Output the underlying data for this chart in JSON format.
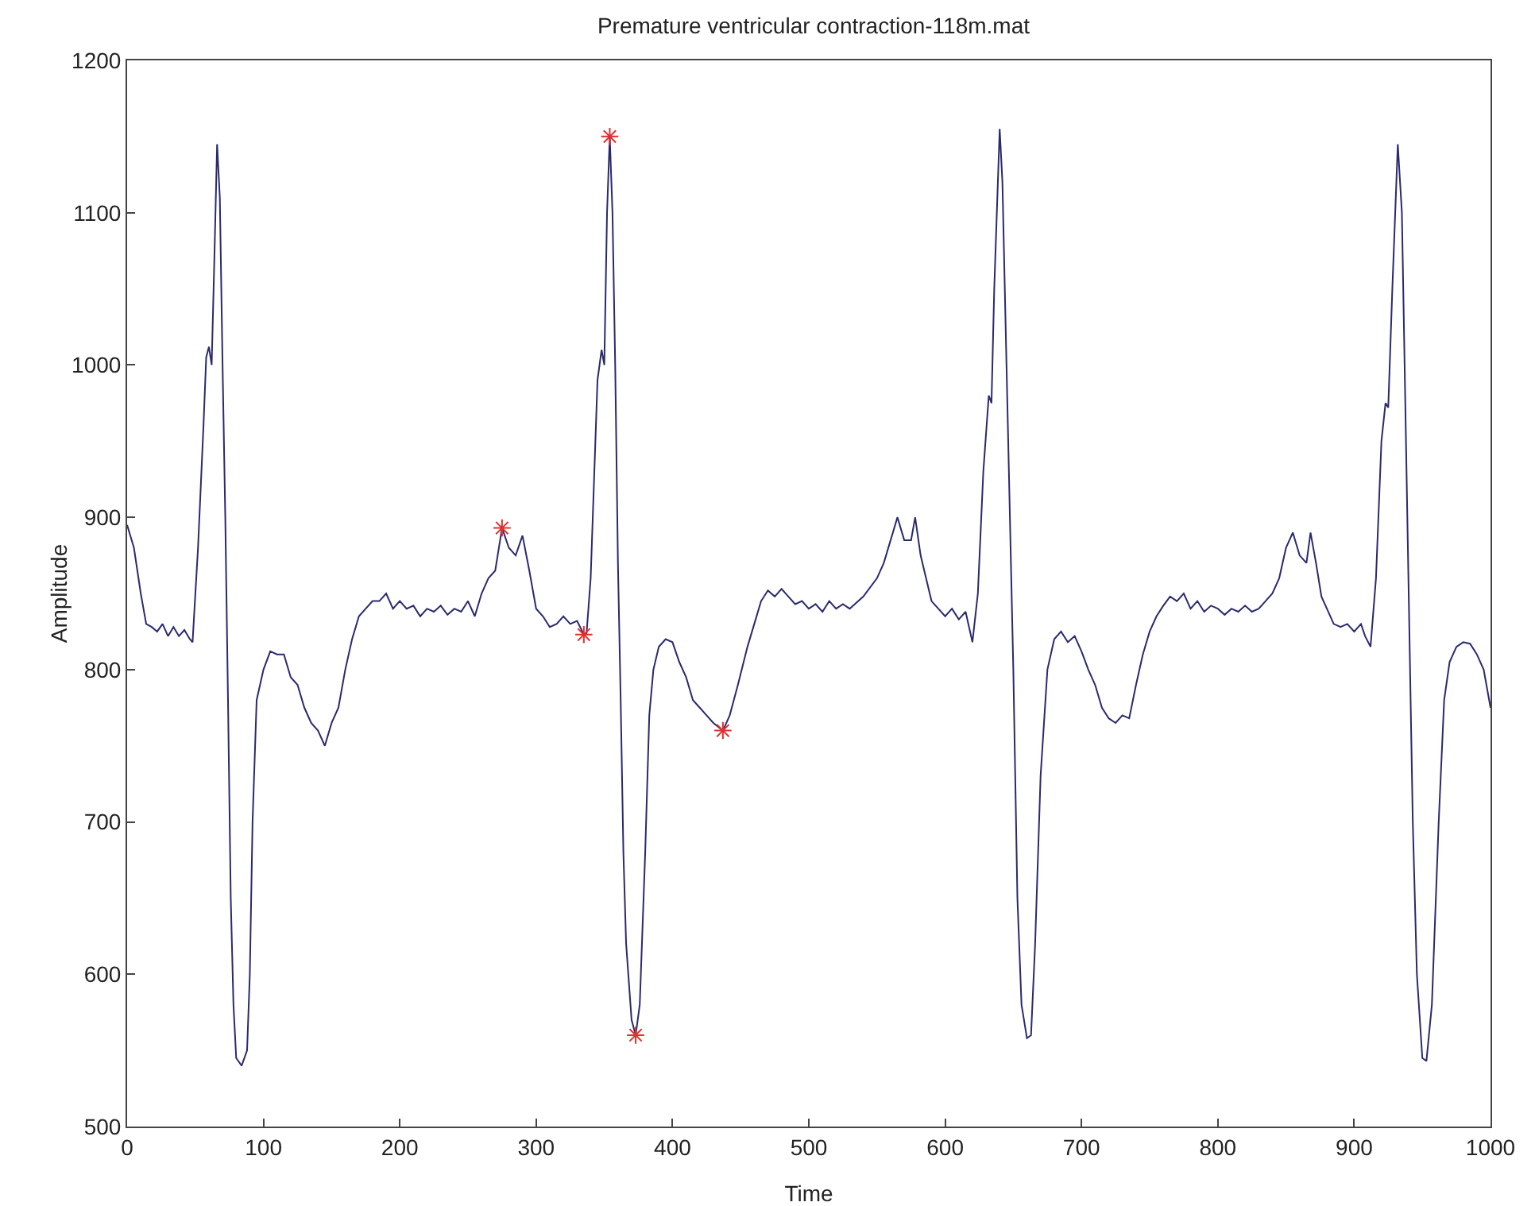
{
  "chart_data": {
    "type": "line",
    "title": "Premature ventricular contraction-118m.mat",
    "xlabel": "Time",
    "ylabel": "Amplitude",
    "xlim": [
      0,
      1000
    ],
    "xticks": [
      0,
      100,
      200,
      300,
      400,
      500,
      600,
      700,
      800,
      900,
      1000
    ],
    "ylim": [
      500,
      1200
    ],
    "yticks": [
      500,
      600,
      700,
      800,
      900,
      1000,
      1100,
      1200
    ],
    "series": [
      {
        "color": "#2a2a6e",
        "marker": "none",
        "line_style": "solid",
        "x": [
          0,
          5,
          10,
          14,
          18,
          22,
          26,
          30,
          34,
          38,
          42,
          46,
          48,
          52,
          56,
          58,
          60,
          62,
          64,
          66,
          68,
          70,
          72,
          74,
          76,
          78,
          80,
          84,
          88,
          90,
          92,
          95,
          100,
          105,
          110,
          115,
          120,
          125,
          130,
          135,
          140,
          145,
          150,
          155,
          160,
          165,
          170,
          175,
          180,
          185,
          190,
          195,
          200,
          205,
          210,
          215,
          220,
          225,
          230,
          235,
          240,
          245,
          250,
          255,
          260,
          265,
          270,
          275,
          280,
          285,
          290,
          295,
          300,
          305,
          310,
          315,
          320,
          325,
          330,
          335,
          337,
          340,
          345,
          348,
          350,
          352,
          354,
          356,
          358,
          360,
          362,
          364,
          366,
          370,
          373,
          376,
          380,
          383,
          386,
          390,
          395,
          400,
          405,
          410,
          415,
          420,
          425,
          430,
          437,
          442,
          448,
          455,
          460,
          465,
          470,
          475,
          480,
          485,
          490,
          495,
          500,
          505,
          510,
          515,
          520,
          525,
          530,
          540,
          550,
          555,
          560,
          565,
          570,
          575,
          578,
          582,
          590,
          595,
          600,
          605,
          610,
          615,
          620,
          624,
          628,
          632,
          634,
          636,
          640,
          642,
          645,
          650,
          653,
          656,
          660,
          663,
          666,
          670,
          675,
          680,
          685,
          690,
          695,
          700,
          705,
          710,
          715,
          720,
          725,
          730,
          735,
          740,
          745,
          750,
          755,
          760,
          765,
          770,
          775,
          780,
          785,
          790,
          795,
          800,
          805,
          810,
          815,
          820,
          825,
          830,
          835,
          840,
          845,
          850,
          855,
          860,
          865,
          868,
          872,
          876,
          880,
          885,
          890,
          895,
          900,
          905,
          908,
          912,
          916,
          920,
          923,
          925,
          928,
          932,
          935,
          937,
          940,
          943,
          946,
          950,
          953,
          957,
          962,
          966,
          970,
          975,
          980,
          985,
          990,
          995,
          1000
        ],
        "values": [
          895,
          880,
          850,
          830,
          828,
          825,
          830,
          822,
          828,
          822,
          826,
          820,
          818,
          880,
          960,
          1005,
          1012,
          1000,
          1070,
          1145,
          1110,
          1000,
          900,
          780,
          650,
          580,
          545,
          540,
          550,
          600,
          700,
          780,
          800,
          812,
          810,
          810,
          795,
          790,
          775,
          765,
          760,
          750,
          765,
          775,
          800,
          820,
          835,
          840,
          845,
          845,
          850,
          840,
          845,
          840,
          842,
          835,
          840,
          838,
          842,
          836,
          840,
          838,
          845,
          835,
          850,
          860,
          865,
          893,
          880,
          875,
          888,
          865,
          840,
          835,
          828,
          830,
          835,
          830,
          832,
          823,
          824,
          860,
          990,
          1010,
          1000,
          1100,
          1150,
          1100,
          1000,
          870,
          780,
          680,
          620,
          570,
          560,
          580,
          680,
          770,
          800,
          815,
          820,
          818,
          805,
          795,
          780,
          775,
          770,
          765,
          760,
          770,
          790,
          815,
          830,
          845,
          852,
          848,
          853,
          848,
          843,
          845,
          840,
          843,
          838,
          845,
          840,
          843,
          840,
          848,
          860,
          870,
          885,
          900,
          885,
          885,
          900,
          875,
          845,
          840,
          835,
          840,
          833,
          838,
          818,
          850,
          930,
          980,
          975,
          1050,
          1155,
          1120,
          1000,
          800,
          650,
          580,
          558,
          560,
          620,
          730,
          800,
          820,
          825,
          818,
          822,
          812,
          800,
          790,
          775,
          768,
          765,
          770,
          768,
          790,
          810,
          825,
          835,
          842,
          848,
          845,
          850,
          840,
          845,
          838,
          842,
          840,
          836,
          840,
          838,
          842,
          838,
          840,
          845,
          850,
          860,
          880,
          890,
          875,
          870,
          890,
          870,
          848,
          840,
          830,
          828,
          830,
          825,
          830,
          822,
          815,
          860,
          950,
          975,
          972,
          1050,
          1145,
          1100,
          1000,
          850,
          700,
          600,
          545,
          543,
          580,
          700,
          780,
          805,
          815,
          818,
          817,
          810,
          800,
          775
        ]
      },
      {
        "type": "scatter",
        "color": "#e03030",
        "marker": "cross",
        "x": [
          275,
          335,
          354,
          373,
          437
        ],
        "values": [
          893,
          823,
          1150,
          560,
          760
        ]
      }
    ]
  }
}
